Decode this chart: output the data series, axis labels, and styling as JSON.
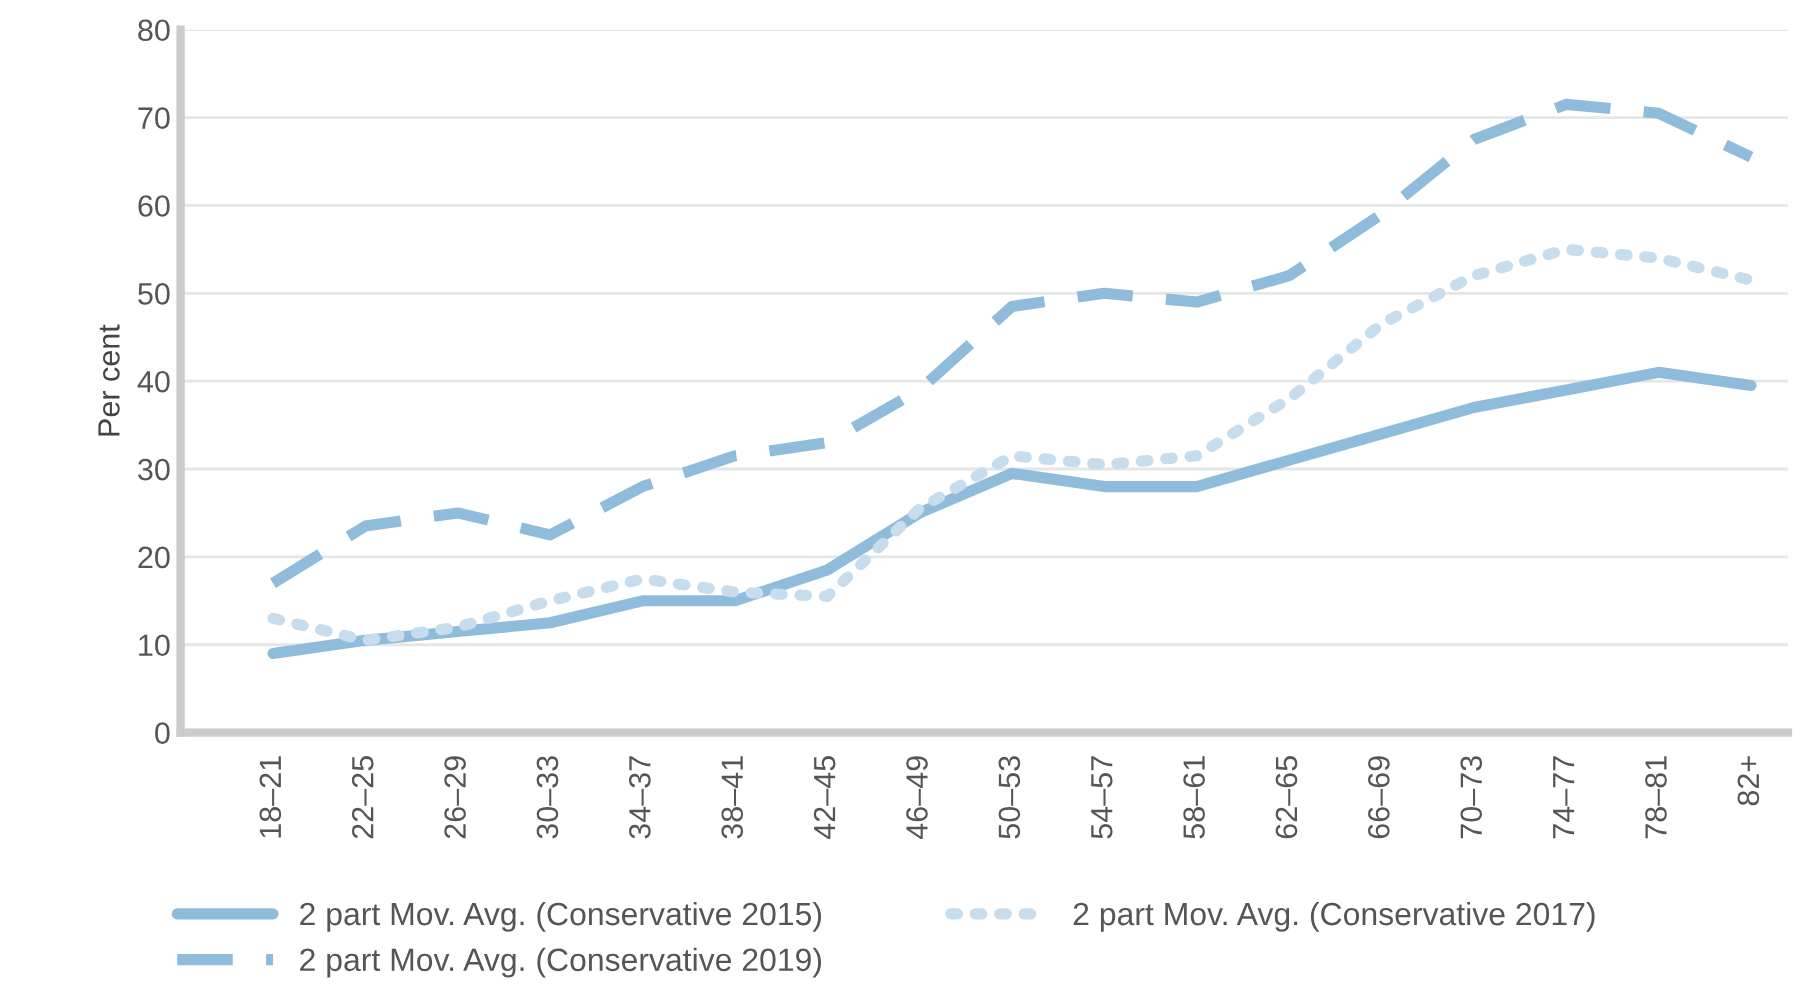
{
  "chart_data": {
    "type": "line",
    "ylabel": "Per cent",
    "categories": [
      "18–21",
      "22–25",
      "26–29",
      "30–33",
      "34–37",
      "38–41",
      "42–45",
      "46–49",
      "50–53",
      "54–57",
      "58–61",
      "62–65",
      "66–69",
      "70–73",
      "74–77",
      "78–81",
      "82+"
    ],
    "series": [
      {
        "name": "2 part Mov. Avg. (Conservative 2015)",
        "color": "#8fbcdb",
        "line_style": "solid",
        "values": [
          9,
          10.5,
          11.5,
          12.5,
          15,
          15,
          18.5,
          25,
          29.5,
          28,
          28,
          31,
          34,
          37,
          39,
          41,
          39.5
        ]
      },
      {
        "name": "2 part Mov. Avg. (Conservative 2017)",
        "color": "#c7dcec",
        "line_style": "dotted",
        "values": [
          13,
          10.5,
          12,
          15,
          17.5,
          16,
          15.5,
          25.5,
          31.5,
          30.5,
          31.5,
          38,
          46.5,
          52,
          55,
          54,
          51.5
        ]
      },
      {
        "name": "2 part Mov. Avg. (Conservative 2019)",
        "color": "#8fbcdb",
        "line_style": "dashed",
        "values": [
          17,
          23.5,
          25,
          22.5,
          28,
          31.5,
          33,
          39,
          48.5,
          50,
          49,
          52,
          59,
          67.5,
          71.5,
          70.5,
          65.5
        ]
      }
    ],
    "ylim": [
      0,
      80
    ],
    "yticks": [
      0,
      10,
      20,
      30,
      40,
      50,
      60,
      70,
      80
    ],
    "grid": "y",
    "legend": "bottom",
    "marker": "none"
  }
}
